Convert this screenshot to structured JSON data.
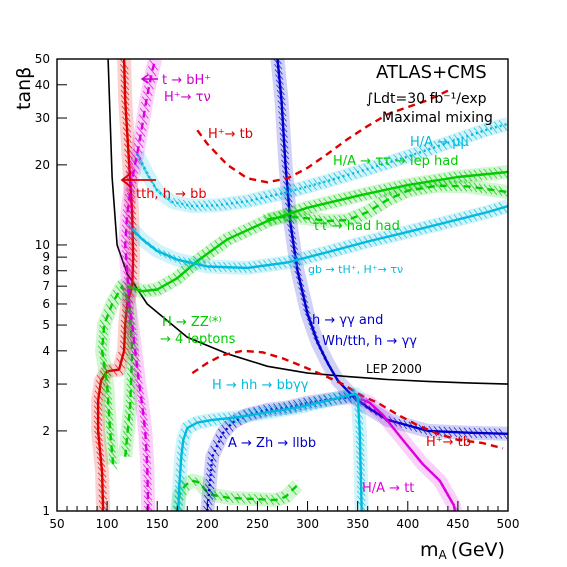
{
  "chart_data": {
    "type": "line",
    "title": "",
    "xlabel": "m_A (GeV)",
    "xlabel_main": "m",
    "xlabel_sub": "A",
    "xlabel_unit": "(GeV)",
    "ylabel": "tanβ",
    "xlim": [
      50,
      500
    ],
    "ylim": [
      1,
      50
    ],
    "yscale": "log",
    "grid": false,
    "x_ticks": [
      50,
      100,
      150,
      200,
      250,
      300,
      350,
      400,
      450,
      500
    ],
    "x_tick_labels": [
      "50",
      "100",
      "150",
      "200",
      "250",
      "300",
      "350",
      "400",
      "450",
      "500"
    ],
    "y_ticks": [
      1,
      2,
      3,
      4,
      5,
      6,
      7,
      8,
      9,
      10,
      20,
      30,
      40,
      50
    ],
    "y_tick_labels": [
      "1",
      "2",
      "3",
      "4",
      "5",
      "6",
      "7",
      "8",
      "9",
      "10",
      "20",
      "30",
      "40",
      "50"
    ],
    "header": {
      "experiment": "ATLAS+CMS",
      "luminosity": "∫Ldt=30 fb⁻¹/exp",
      "scenario": "Maximal mixing"
    },
    "series": [
      {
        "id": "lep",
        "color": "#000000",
        "style": "solid",
        "hatch": false,
        "x": [
          101,
          105,
          110,
          120,
          140,
          180,
          220,
          260,
          300,
          340,
          380,
          420,
          460,
          500
        ],
        "y": [
          50,
          18,
          10,
          7.8,
          6,
          4.5,
          3.9,
          3.5,
          3.3,
          3.2,
          3.12,
          3.07,
          3.03,
          3.0
        ]
      },
      {
        "id": "h-bb",
        "color": "#dd0000",
        "style": "solid",
        "hatch": true,
        "x": [
          96,
          95,
          91,
          91,
          94,
          100,
          112,
          117,
          118,
          120,
          125,
          126,
          125,
          122,
          118,
          117
        ],
        "y": [
          1,
          1.4,
          2,
          2.6,
          3.1,
          3.35,
          3.4,
          4,
          5,
          6,
          7,
          9,
          13,
          20,
          35,
          50
        ]
      },
      {
        "id": "h-gamgam",
        "color": "#0000cc",
        "style": "solid",
        "hatch": true,
        "x": [
          270,
          274,
          278,
          283,
          290,
          300,
          310,
          320,
          330,
          345,
          360,
          380,
          420,
          460,
          500
        ],
        "y": [
          50,
          35,
          20,
          12,
          8,
          5.5,
          4.3,
          3.6,
          3.1,
          2.7,
          2.45,
          2.2,
          2.0,
          1.97,
          1.95
        ]
      },
      {
        "id": "zz",
        "color": "#00cc00",
        "style": "dashed",
        "hatch": true,
        "x": [
          106,
          103,
          100,
          95,
          97,
          105,
          115,
          122,
          125,
          123,
          118
        ],
        "y": [
          1.5,
          2,
          3,
          4,
          5,
          6,
          7,
          6,
          4,
          2.5,
          1.6
        ]
      },
      {
        "id": "tautau-lephad",
        "color": "#00cc00",
        "style": "solid",
        "hatch": true,
        "x": [
          120,
          135,
          150,
          170,
          190,
          220,
          260,
          300,
          350,
          400,
          450,
          500
        ],
        "y": [
          7.0,
          6.7,
          6.8,
          7.5,
          8.7,
          10.5,
          12.3,
          13.8,
          15.3,
          16.8,
          18.0,
          18.8
        ]
      },
      {
        "id": "tautau-hadhad",
        "color": "#00cc00",
        "style": "dashed",
        "hatch": true,
        "x": [
          260,
          280,
          300,
          320,
          340,
          360,
          380,
          400,
          430,
          460,
          500
        ],
        "y": [
          12.5,
          12.8,
          12.6,
          12.3,
          12.4,
          13.3,
          14.8,
          16.0,
          16.7,
          16.6,
          15.8
        ]
      },
      {
        "id": "hh",
        "color": "#00cc00",
        "style": "dashed",
        "hatch": true,
        "x": [
          170,
          172,
          178,
          185,
          192,
          198,
          205,
          222,
          245,
          268,
          278,
          285,
          290
        ],
        "y": [
          1.0,
          1.15,
          1.25,
          1.3,
          1.28,
          1.2,
          1.15,
          1.12,
          1.11,
          1.1,
          1.13,
          1.2,
          1.25
        ]
      },
      {
        "id": "h-tb",
        "color": "#dd0000",
        "style": "dashed",
        "hatch": false,
        "x": [
          190,
          200,
          220,
          240,
          260,
          280,
          300,
          320,
          340,
          360,
          380,
          400,
          420,
          440
        ],
        "y": [
          27,
          24,
          20,
          17.8,
          17.2,
          17.8,
          19.5,
          22,
          25,
          28,
          31,
          33,
          35,
          38
        ]
      },
      {
        "id": "h-tb-low",
        "color": "#dd0000",
        "style": "dashed",
        "hatch": false,
        "x": [
          185,
          200,
          215,
          235,
          255,
          275,
          295,
          315,
          335,
          355,
          370,
          390,
          410,
          430,
          450,
          475,
          495
        ],
        "y": [
          3.3,
          3.6,
          3.85,
          4.0,
          3.95,
          3.75,
          3.5,
          3.25,
          3.0,
          2.7,
          2.55,
          2.3,
          2.1,
          1.95,
          1.85,
          1.8,
          1.72
        ]
      },
      {
        "id": "mumu",
        "color": "#00bbdd",
        "style": "dotted",
        "hatch": true,
        "x": [
          130,
          140,
          150,
          165,
          185,
          210,
          240,
          280,
          320,
          360,
          400,
          440,
          480,
          500
        ],
        "y": [
          22,
          18.5,
          16,
          14.5,
          14.0,
          14.1,
          14.6,
          15.8,
          17.4,
          19.3,
          21.5,
          24.2,
          27.2,
          28.5
        ]
      },
      {
        "id": "tbH",
        "color": "#00bbdd",
        "style": "solid",
        "hatch": true,
        "x": [
          125,
          135,
          150,
          170,
          200,
          240,
          280,
          320,
          360,
          400,
          440,
          480,
          500
        ],
        "y": [
          11.5,
          10.5,
          9.5,
          8.8,
          8.3,
          8.2,
          8.6,
          9.4,
          10.3,
          11.2,
          12.2,
          13.3,
          14.0
        ]
      },
      {
        "id": "t-bH",
        "color": "#dd00dd",
        "style": "dashed",
        "hatch": true,
        "x": [
          141,
          140,
          138,
          135,
          132,
          128,
          125,
          122,
          120,
          118,
          120,
          124,
          130,
          135,
          138,
          141,
          145,
          148
        ],
        "y": [
          1,
          1.5,
          2,
          2.5,
          3,
          4,
          5,
          6,
          8,
          10,
          13,
          17,
          22,
          28,
          33,
          38,
          45,
          50
        ]
      },
      {
        "id": "HA-tt",
        "color": "#dd00dd",
        "style": "solid",
        "hatch": true,
        "x": [
          350,
          355,
          362,
          375,
          395,
          415,
          432,
          440,
          446,
          447
        ],
        "y": [
          2.62,
          2.62,
          2.55,
          2.3,
          1.85,
          1.5,
          1.3,
          1.15,
          1.05,
          1.0
        ]
      },
      {
        "id": "Zh",
        "color": "#0000cc",
        "style": "dotted",
        "hatch": true,
        "x": [
          200,
          205,
          215,
          225,
          240,
          260,
          280,
          300,
          320,
          335,
          345,
          348
        ],
        "y": [
          1.0,
          1.6,
          1.95,
          2.15,
          2.3,
          2.4,
          2.45,
          2.55,
          2.62,
          2.66,
          2.68,
          2.68
        ]
      },
      {
        "id": "cyan-low",
        "color": "#00bbdd",
        "style": "solid",
        "hatch": true,
        "x": [
          171,
          172,
          174,
          176,
          180,
          190,
          205,
          230,
          260,
          290,
          320,
          340,
          348,
          350,
          352,
          354
        ],
        "y": [
          1.0,
          1.25,
          1.6,
          1.85,
          2.05,
          2.15,
          2.2,
          2.25,
          2.35,
          2.45,
          2.6,
          2.72,
          2.75,
          2.7,
          2.0,
          1.0
        ]
      }
    ],
    "annotations": {
      "t_bh": "t → bH⁺",
      "h_taunu": "H⁺→ τν",
      "h_tb_top": "H⁺→ tb",
      "tth_bb": "tth, h → bb",
      "ha_mumu": "H/A → μμ",
      "ha_tautau": "H/A → ττ → lep had",
      "tautau_hadhad": "ττ → had had",
      "gb_th": "gb → tH⁺, H⁺→ τν",
      "h_zz": "H → ZZ⁽*⁾",
      "four_leptons": "→ 4 leptons",
      "h_gamgam": "h → γγ and",
      "wh_tth": "Wh/tth, h → γγ",
      "lep_2000": "LEP 2000",
      "h_hh": "H → hh → bbγγ",
      "a_zh": "A → Zh → llbb",
      "h_tb_low": "H⁺→ tb",
      "ha_tt": "H/A → tt"
    }
  }
}
